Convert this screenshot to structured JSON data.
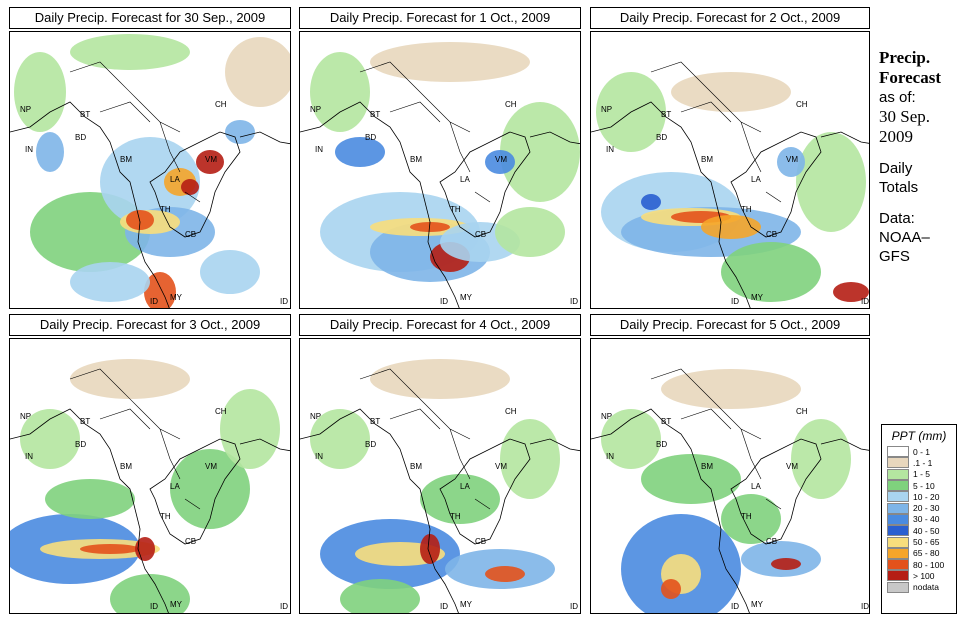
{
  "panels": [
    {
      "title": "Daily Precip. Forecast for  30 Sep., 2009"
    },
    {
      "title": "Daily Precip. Forecast for  1 Oct., 2009"
    },
    {
      "title": "Daily Precip. Forecast for  2 Oct., 2009"
    },
    {
      "title": "Daily Precip. Forecast for  3 Oct., 2009"
    },
    {
      "title": "Daily Precip. Forecast for  4 Oct., 2009"
    },
    {
      "title": "Daily Precip. Forecast for  5 Oct., 2009"
    }
  ],
  "map_labels": {
    "np": "NP",
    "bt": "BT",
    "bd": "BD",
    "in": "IN",
    "bm": "BM",
    "ch": "CH",
    "vm": "VM",
    "la": "LA",
    "th": "TH",
    "cb": "CB",
    "my": "MY",
    "id": "ID"
  },
  "sidebar": {
    "title_line1": "Precip.",
    "title_line2": "Forecast",
    "asof": "as of:",
    "date_line1": "30 Sep.",
    "date_line2": "2009",
    "daily_line1": "Daily",
    "daily_line2": "Totals",
    "data_line1": "Data:",
    "data_line2": "NOAA–",
    "data_line3": "GFS"
  },
  "legend": {
    "title": "PPT (mm)",
    "items": [
      {
        "label": "0 - 1",
        "color": "#ffffff"
      },
      {
        "label": ".1 - 1",
        "color": "#e8d7bd"
      },
      {
        "label": "1 - 5",
        "color": "#b4e6a0"
      },
      {
        "label": "5 - 10",
        "color": "#7fd27d"
      },
      {
        "label": "10 - 20",
        "color": "#a9d4ef"
      },
      {
        "label": "20 - 30",
        "color": "#7eb5e8"
      },
      {
        "label": "30 - 40",
        "color": "#4a8be0"
      },
      {
        "label": "40 - 50",
        "color": "#2a5fd0"
      },
      {
        "label": "50 - 65",
        "color": "#f8de7c"
      },
      {
        "label": "65 - 80",
        "color": "#f5a52a"
      },
      {
        "label": "80 - 100",
        "color": "#e3521c"
      },
      {
        "label": "> 100",
        "color": "#b51e14"
      },
      {
        "label": "nodata",
        "color": "#c8c8c8"
      }
    ]
  }
}
